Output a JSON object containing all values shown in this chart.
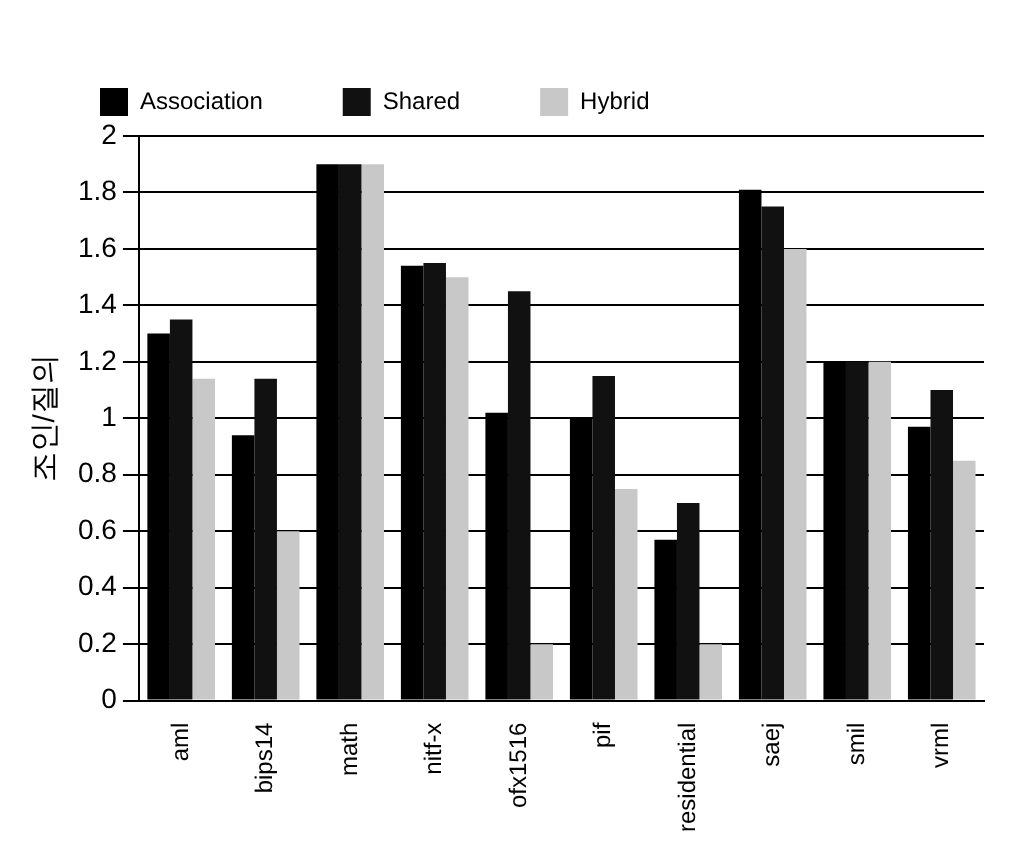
{
  "chart_data": {
    "type": "bar",
    "ylabel": "조인/질의",
    "categories": [
      "aml",
      "bips14",
      "math",
      "nitf-x",
      "ofx1516",
      "pif",
      "residential",
      "saej",
      "smil",
      "vrml"
    ],
    "series": [
      {
        "name": "Association",
        "color": "#000000",
        "values": [
          1.3,
          0.94,
          1.9,
          1.54,
          1.02,
          1.0,
          0.57,
          1.81,
          1.2,
          0.97
        ]
      },
      {
        "name": "Shared",
        "color": "#111111",
        "values": [
          1.35,
          1.14,
          1.9,
          1.55,
          1.45,
          1.15,
          0.7,
          1.75,
          1.2,
          1.1
        ]
      },
      {
        "name": "Hybrid",
        "color": "#c8c8c8",
        "values": [
          1.14,
          0.6,
          1.9,
          1.5,
          0.2,
          0.75,
          0.2,
          1.6,
          1.2,
          0.85
        ]
      }
    ],
    "ylim": [
      0,
      2
    ],
    "yticks": [
      0,
      0.2,
      0.4,
      0.6,
      0.8,
      1,
      1.2,
      1.4,
      1.6,
      1.8,
      2
    ],
    "grid": "y",
    "legend": "top"
  }
}
